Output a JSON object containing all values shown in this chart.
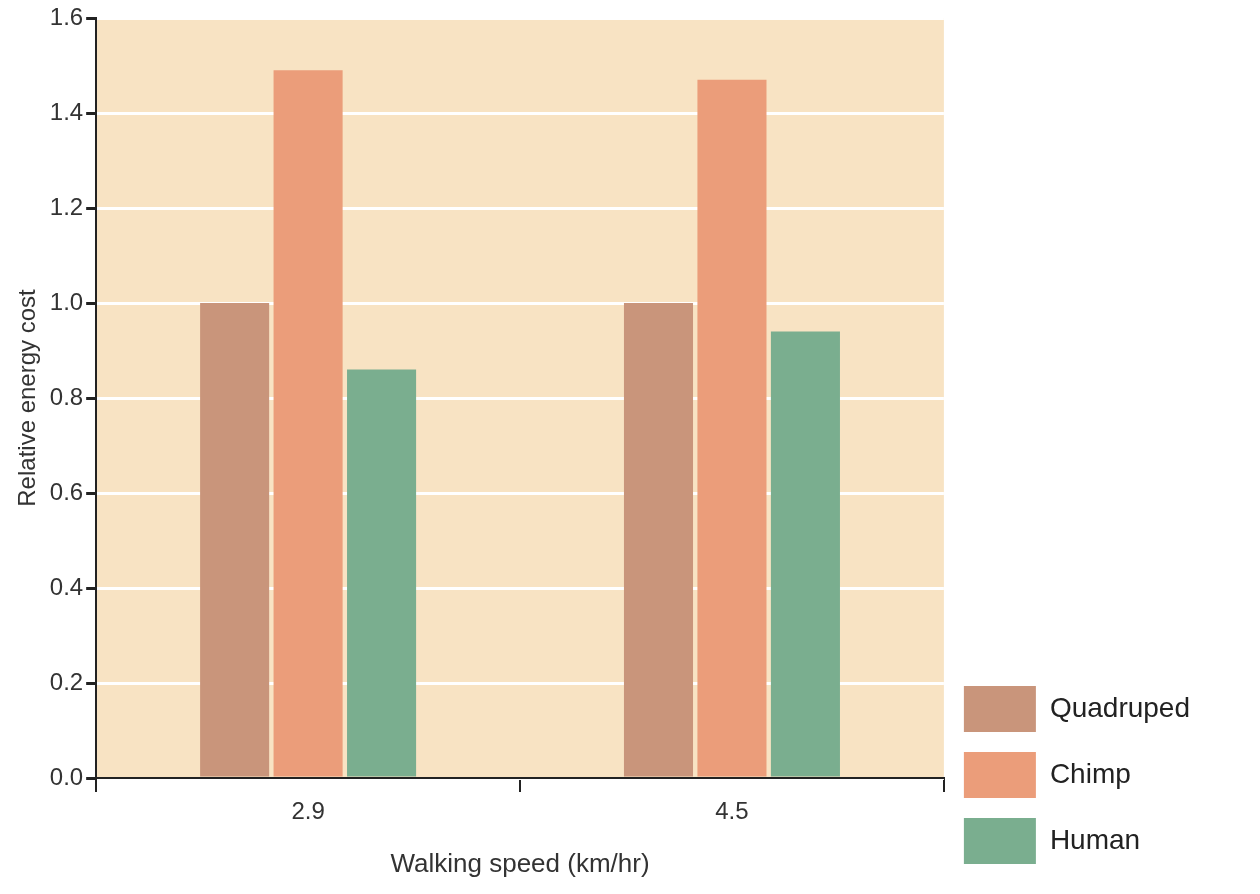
{
  "chart_data": {
    "type": "bar",
    "xlabel": "Walking speed (km/hr)",
    "ylabel": "Relative energy cost",
    "categories": [
      "2.9",
      "4.5"
    ],
    "series": [
      {
        "name": "Quadruped",
        "color": "#c9957b",
        "values": [
          1.0,
          1.0
        ]
      },
      {
        "name": "Chimp",
        "color": "#eb9d7a",
        "values": [
          1.49,
          1.47
        ]
      },
      {
        "name": "Human",
        "color": "#7aae8f",
        "values": [
          0.86,
          0.94
        ]
      }
    ],
    "ylim": [
      0,
      1.6
    ],
    "yticks": [
      {
        "value": 0,
        "label": "0.0"
      },
      0.2,
      0.4,
      0.6,
      0.8,
      {
        "value": 1,
        "label": "1.0"
      },
      1.2,
      1.4,
      1.6
    ],
    "grid": "y",
    "legend": "bottom right"
  }
}
